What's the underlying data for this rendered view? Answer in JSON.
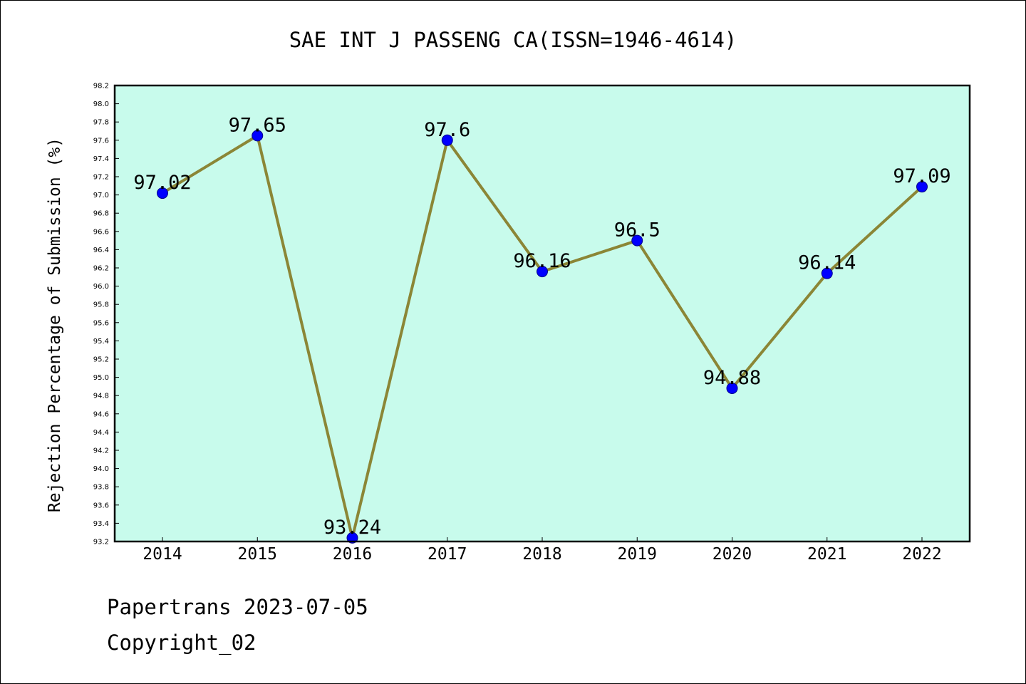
{
  "chart_data": {
    "type": "line",
    "title": "SAE INT J PASSENG CA(ISSN=1946-4614)",
    "xlabel": "",
    "ylabel": "Rejection Percentage of Submission (%)",
    "categories": [
      "2014",
      "2015",
      "2016",
      "2017",
      "2018",
      "2019",
      "2020",
      "2021",
      "2022"
    ],
    "values": [
      97.02,
      97.65,
      93.24,
      97.6,
      96.16,
      96.5,
      94.88,
      96.14,
      97.09
    ],
    "data_labels": [
      "97.02",
      "97.65",
      "93.24",
      "97.6",
      "96.16",
      "96.5",
      "94.88",
      "96.14",
      "97.09"
    ],
    "ylim": [
      93.2,
      98.2
    ],
    "yticks": [
      "93.2",
      "93.4",
      "93.6",
      "93.8",
      "94.0",
      "94.2",
      "94.4",
      "94.6",
      "94.8",
      "95.0",
      "95.2",
      "95.4",
      "95.6",
      "95.8",
      "96.0",
      "96.2",
      "96.4",
      "96.6",
      "96.8",
      "97.0",
      "97.2",
      "97.4",
      "97.6",
      "97.8",
      "98.0",
      "98.2"
    ],
    "grid": false,
    "legend": "none",
    "colors": {
      "plot_background": "#c8fbec",
      "line": "#8b8636",
      "marker_fill": "#0000ff",
      "marker_edge": "#00008b"
    }
  },
  "footer": {
    "line1": "Papertrans 2023-07-05",
    "line2": "Copyright_02"
  }
}
